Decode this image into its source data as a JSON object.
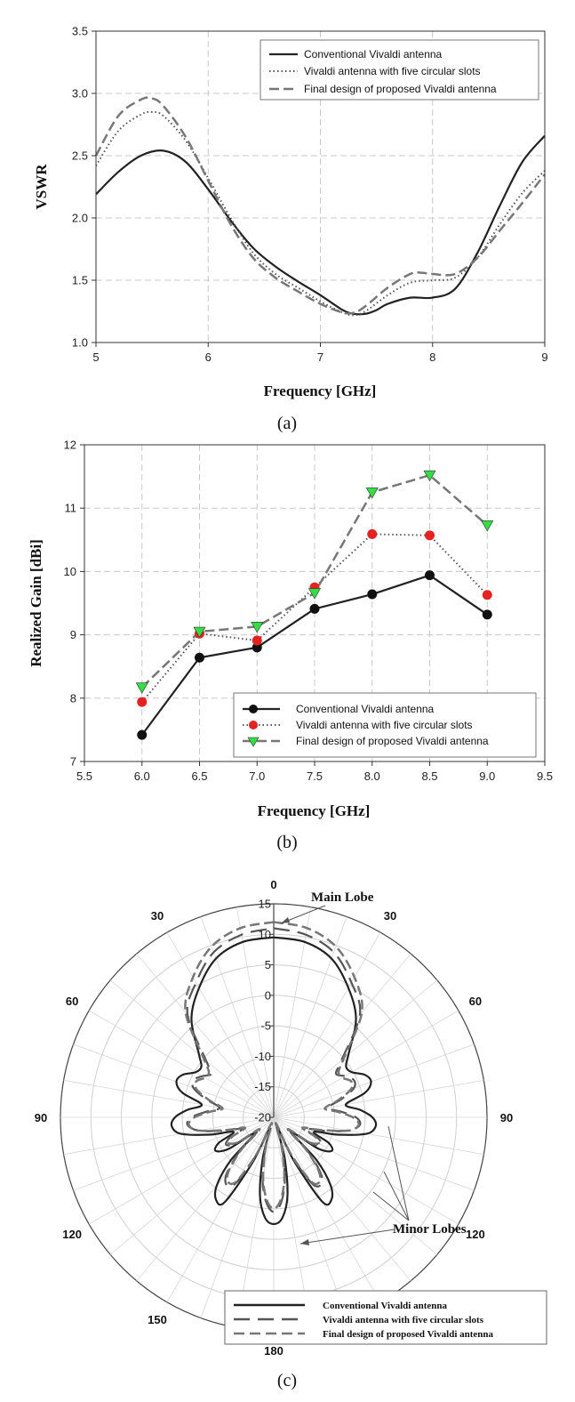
{
  "colors": {
    "conventional": "#222222",
    "slots_dot": "#555555",
    "final_dash": "#777777",
    "red_marker": "#e52222",
    "green_marker": "#33dd44",
    "grid": "#c8c8c8"
  },
  "chart_data": [
    {
      "type": "line",
      "panel_label": "(a)",
      "xlabel": "Frequency [GHz]",
      "ylabel": "VSWR",
      "xlim": [
        5,
        9
      ],
      "ylim": [
        1.0,
        3.5
      ],
      "xticks": [
        "5",
        "6",
        "7",
        "8",
        "9"
      ],
      "yticks": [
        "1.0",
        "1.5",
        "2.0",
        "2.5",
        "3.0",
        "3.5"
      ],
      "grid": true,
      "legend_position": "top-right",
      "series": [
        {
          "name": "Conventional Vivaldi antenna",
          "style": "solid",
          "x": [
            5.0,
            5.2,
            5.4,
            5.6,
            5.8,
            6.0,
            6.2,
            6.4,
            6.6,
            6.8,
            7.0,
            7.2,
            7.3,
            7.4,
            7.5,
            7.6,
            7.8,
            8.0,
            8.2,
            8.4,
            8.6,
            8.8,
            9.0
          ],
          "y": [
            2.19,
            2.37,
            2.5,
            2.54,
            2.45,
            2.23,
            1.98,
            1.76,
            1.61,
            1.49,
            1.38,
            1.26,
            1.23,
            1.23,
            1.26,
            1.31,
            1.36,
            1.36,
            1.43,
            1.72,
            2.1,
            2.45,
            2.66
          ]
        },
        {
          "name": "Vivaldi antenna with five circular slots",
          "style": "dotted",
          "x": [
            5.0,
            5.2,
            5.4,
            5.5,
            5.6,
            5.8,
            6.0,
            6.2,
            6.4,
            6.6,
            6.8,
            7.0,
            7.2,
            7.3,
            7.4,
            7.6,
            7.8,
            8.0,
            8.2,
            8.4,
            8.6,
            8.8,
            9.0
          ],
          "y": [
            2.42,
            2.7,
            2.83,
            2.85,
            2.82,
            2.62,
            2.32,
            2.0,
            1.72,
            1.55,
            1.44,
            1.33,
            1.24,
            1.22,
            1.25,
            1.38,
            1.48,
            1.5,
            1.52,
            1.68,
            1.95,
            2.2,
            2.38
          ]
        },
        {
          "name": "Final design of proposed Vivaldi antenna",
          "style": "dashed",
          "x": [
            5.0,
            5.2,
            5.4,
            5.5,
            5.6,
            5.8,
            6.0,
            6.2,
            6.4,
            6.6,
            6.8,
            7.0,
            7.2,
            7.3,
            7.4,
            7.6,
            7.8,
            7.9,
            8.0,
            8.2,
            8.4,
            8.6,
            8.8,
            9.0
          ],
          "y": [
            2.5,
            2.82,
            2.95,
            2.96,
            2.9,
            2.65,
            2.3,
            1.95,
            1.68,
            1.52,
            1.41,
            1.31,
            1.24,
            1.24,
            1.29,
            1.44,
            1.55,
            1.56,
            1.55,
            1.55,
            1.68,
            1.9,
            2.12,
            2.35
          ]
        }
      ]
    },
    {
      "type": "line",
      "panel_label": "(b)",
      "xlabel": "Frequency [GHz]",
      "ylabel": "Realized Gain [dBi]",
      "xlim": [
        5.5,
        9.5
      ],
      "ylim": [
        7,
        12
      ],
      "xticks": [
        "5.5",
        "6.0",
        "6.5",
        "7.0",
        "7.5",
        "8.0",
        "8.5",
        "9.0",
        "9.5"
      ],
      "yticks": [
        "7",
        "8",
        "9",
        "10",
        "11",
        "12"
      ],
      "grid": true,
      "legend_position": "bottom-right",
      "series": [
        {
          "name": "Conventional Vivaldi antenna",
          "style": "solid",
          "marker": "circle-black",
          "x": [
            6.0,
            6.5,
            7.0,
            7.5,
            8.0,
            8.5,
            9.0
          ],
          "y": [
            7.42,
            8.64,
            8.8,
            9.41,
            9.64,
            9.94,
            9.32
          ]
        },
        {
          "name": "Vivaldi antenna with five circular slots",
          "style": "dotted",
          "marker": "circle-red",
          "x": [
            6.0,
            6.5,
            7.0,
            7.5,
            8.0,
            8.5,
            9.0
          ],
          "y": [
            7.94,
            9.02,
            8.91,
            9.75,
            10.59,
            10.57,
            9.63
          ]
        },
        {
          "name": "Final design of proposed Vivaldi antenna",
          "style": "dashed",
          "marker": "triangle-green",
          "x": [
            6.0,
            6.5,
            7.0,
            7.5,
            8.0,
            8.5,
            9.0
          ],
          "y": [
            8.17,
            9.05,
            9.13,
            9.66,
            11.25,
            11.52,
            10.73
          ]
        }
      ]
    },
    {
      "type": "polar",
      "panel_label": "(c)",
      "rlim": [
        -20,
        15
      ],
      "rticks": [
        "15",
        "10",
        "5",
        "0",
        "-5",
        "-10",
        "-15",
        "-20"
      ],
      "angle_labels": [
        {
          "text": "0",
          "angle": 0
        },
        {
          "text": "30",
          "angle": 30
        },
        {
          "text": "60",
          "angle": 60
        },
        {
          "text": "90",
          "angle": 90
        },
        {
          "text": "120",
          "angle": 120
        },
        {
          "text": "150",
          "angle": 150
        },
        {
          "text": "180",
          "angle": 180
        },
        {
          "text": "150",
          "angle": 210
        },
        {
          "text": "120",
          "angle": 240
        },
        {
          "text": "90",
          "angle": 270
        },
        {
          "text": "60",
          "angle": 300
        },
        {
          "text": "30",
          "angle": 330
        }
      ],
      "annotations": {
        "main": "Main Lobe",
        "minor": "Minor Lobes"
      },
      "legend_position": "bottom-right",
      "series": [
        {
          "name": "Conventional Vivaldi antenna",
          "style": "solid",
          "theta": [
            0,
            10,
            20,
            30,
            40,
            50,
            55,
            60,
            65,
            70,
            75,
            80,
            85,
            90,
            95,
            100,
            105,
            110,
            115,
            120,
            125,
            130,
            135,
            140,
            145,
            150,
            155,
            160,
            165,
            170,
            175,
            180
          ],
          "r": [
            9.5,
            9.2,
            7.7,
            4.5,
            1.0,
            -4.0,
            -5.5,
            -5.2,
            -3.5,
            -3.0,
            -4.5,
            -8.0,
            -5.8,
            -3.8,
            -3.2,
            -4.5,
            -9.0,
            -13.0,
            -10.0,
            -9.0,
            -11.0,
            -16.0,
            -10.0,
            -5.5,
            -3.5,
            -4.0,
            -12.0,
            -18.0,
            -13.0,
            -7.0,
            -3.5,
            -2.5
          ]
        },
        {
          "name": "Vivaldi antenna with five circular slots",
          "style": "dashed-long",
          "theta": [
            0,
            10,
            20,
            30,
            40,
            50,
            55,
            60,
            65,
            70,
            75,
            80,
            85,
            90,
            95,
            100,
            105,
            110,
            115,
            120,
            125,
            130,
            135,
            140,
            145,
            150,
            155,
            160,
            165,
            170,
            175,
            180
          ],
          "r": [
            11.0,
            10.4,
            8.8,
            5.5,
            2.0,
            -5.5,
            -7.5,
            -6.5,
            -5.5,
            -6.0,
            -8.5,
            -11.0,
            -9.0,
            -6.5,
            -5.8,
            -7.5,
            -11.5,
            -14.5,
            -12.0,
            -11.0,
            -12.5,
            -16.5,
            -12.0,
            -8.0,
            -6.5,
            -7.5,
            -13.0,
            -18.5,
            -14.5,
            -9.5,
            -6.0,
            -4.5
          ]
        },
        {
          "name": "Final design of proposed Vivaldi antenna",
          "style": "dashed",
          "theta": [
            0,
            10,
            20,
            30,
            40,
            50,
            55,
            60,
            65,
            70,
            75,
            80,
            85,
            90,
            95,
            100,
            105,
            110,
            115,
            120,
            125,
            130,
            135,
            140,
            145,
            150,
            155,
            160,
            165,
            170,
            175,
            180
          ],
          "r": [
            12.0,
            11.5,
            9.8,
            6.5,
            2.5,
            -5.0,
            -7.0,
            -7.0,
            -6.0,
            -6.5,
            -9.0,
            -11.5,
            -9.5,
            -7.0,
            -6.0,
            -7.5,
            -12.0,
            -15.0,
            -12.5,
            -11.5,
            -13.0,
            -17.0,
            -12.5,
            -8.5,
            -7.0,
            -8.0,
            -13.5,
            -19.0,
            -15.0,
            -10.0,
            -6.5,
            -5.0
          ]
        }
      ]
    }
  ]
}
